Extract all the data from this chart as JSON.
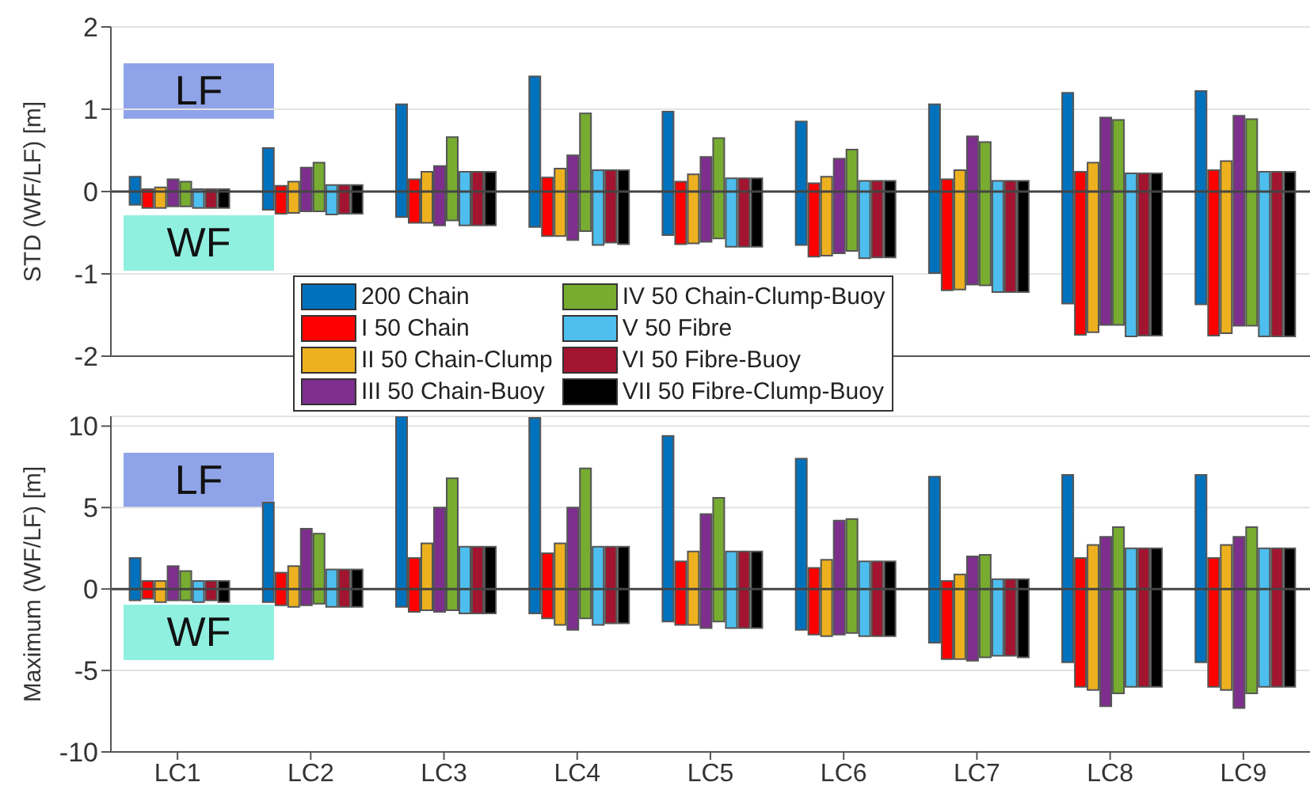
{
  "chart_data": [
    {
      "type": "bar",
      "ylabel": "STD (WF/LF) [m]",
      "categories": [
        null,
        null,
        null,
        null,
        null,
        null,
        null,
        null,
        null
      ],
      "ylim": [
        -2,
        2
      ],
      "yticks": [
        -2,
        -1,
        0,
        1,
        2
      ],
      "grid": "y",
      "legend": "bottom",
      "tick_labels": "y",
      "annotations": [
        "LF",
        "WF"
      ],
      "ref_lines": [
        {
          "axis": "y",
          "value": 0
        }
      ],
      "series": [
        {
          "name": "200 Chain",
          "color": "#0072bd",
          "base": [
            -0.16,
            -0.22,
            -0.31,
            -0.43,
            -0.53,
            -0.65,
            -0.99,
            -1.36,
            -1.37
          ],
          "values": [
            0.34,
            0.75,
            1.37,
            1.83,
            1.5,
            1.5,
            2.05,
            2.56,
            2.59
          ]
        },
        {
          "name": "I 50 Chain",
          "color": "#ff0000",
          "base": [
            -0.2,
            -0.27,
            -0.38,
            -0.54,
            -0.64,
            -0.79,
            -1.2,
            -1.74,
            -1.75
          ],
          "values": [
            0.23,
            0.34,
            0.53,
            0.71,
            0.76,
            0.89,
            1.35,
            1.98,
            2.01
          ]
        },
        {
          "name": "II 50 Chain-Clump",
          "color": "#edb120",
          "base": [
            -0.2,
            -0.26,
            -0.38,
            -0.54,
            -0.63,
            -0.78,
            -1.19,
            -1.71,
            -1.72
          ],
          "values": [
            0.25,
            0.38,
            0.62,
            0.82,
            0.84,
            0.96,
            1.45,
            2.06,
            2.09
          ]
        },
        {
          "name": "III 50 Chain-Buoy",
          "color": "#7e2f8e",
          "base": [
            -0.18,
            -0.24,
            -0.41,
            -0.59,
            -0.61,
            -0.75,
            -1.13,
            -1.62,
            -1.63
          ],
          "values": [
            0.33,
            0.53,
            0.72,
            1.03,
            1.03,
            1.15,
            1.8,
            2.52,
            2.55
          ]
        },
        {
          "name": "IV 50 Chain-Clump-Buoy",
          "color": "#77ac30",
          "base": [
            -0.18,
            -0.24,
            -0.35,
            -0.48,
            -0.57,
            -0.72,
            -1.14,
            -1.62,
            -1.63
          ],
          "values": [
            0.3,
            0.59,
            1.01,
            1.43,
            1.22,
            1.23,
            1.74,
            2.49,
            2.51
          ]
        },
        {
          "name": "V 50 Fibre",
          "color": "#4dbeee",
          "base": [
            -0.2,
            -0.28,
            -0.41,
            -0.65,
            -0.67,
            -0.81,
            -1.22,
            -1.76,
            -1.76
          ],
          "values": [
            0.23,
            0.36,
            0.65,
            0.91,
            0.83,
            0.94,
            1.35,
            1.98,
            2.0
          ]
        },
        {
          "name": "VI 50 Fibre-Buoy",
          "color": "#a2142f",
          "base": [
            -0.2,
            -0.27,
            -0.41,
            -0.62,
            -0.67,
            -0.8,
            -1.22,
            -1.75,
            -1.76
          ],
          "values": [
            0.23,
            0.35,
            0.65,
            0.88,
            0.83,
            0.93,
            1.35,
            1.97,
            2.0
          ]
        },
        {
          "name": "VII 50 Fibre-Clump-Buoy",
          "color": "#000000",
          "base": [
            -0.2,
            -0.27,
            -0.41,
            -0.64,
            -0.67,
            -0.8,
            -1.22,
            -1.75,
            -1.76
          ],
          "values": [
            0.23,
            0.35,
            0.65,
            0.9,
            0.83,
            0.93,
            1.35,
            1.97,
            2.0
          ]
        }
      ]
    },
    {
      "type": "bar",
      "ylabel": "Maximum (WF/LF) [m]",
      "categories": [
        "LC1",
        "LC2",
        "LC3",
        "LC4",
        "LC5",
        "LC6",
        "LC7",
        "LC8",
        "LC9"
      ],
      "ylim": [
        -10,
        10.6
      ],
      "yticks": [
        -10,
        -5,
        0,
        5,
        10
      ],
      "grid": "y",
      "annotations": [
        "LF",
        "WF"
      ],
      "ref_lines": [
        {
          "axis": "y",
          "value": 0
        }
      ],
      "series": [
        {
          "color": "#0072bd",
          "base": [
            -0.7,
            -0.8,
            -1.1,
            -1.5,
            -2,
            -2.5,
            -3.3,
            -4.5,
            -4.5
          ],
          "values": [
            2.6,
            6.1,
            11.7,
            12,
            11.4,
            10.5,
            10.2,
            11.5,
            11.5
          ]
        },
        {
          "color": "#ff0000",
          "base": [
            -0.6,
            -1,
            -1.4,
            -1.8,
            -2.2,
            -2.8,
            -4.3,
            -6,
            -6
          ],
          "values": [
            1.1,
            2,
            3.3,
            4,
            3.9,
            4.1,
            4.8,
            7.9,
            7.9
          ]
        },
        {
          "color": "#edb120",
          "base": [
            -0.8,
            -1.1,
            -1.3,
            -2.2,
            -2.2,
            -2.9,
            -4.3,
            -6.2,
            -6.2
          ],
          "values": [
            1.3,
            2.5,
            4.1,
            5,
            4.5,
            4.7,
            5.2,
            8.9,
            8.9
          ]
        },
        {
          "color": "#7e2f8e",
          "base": [
            -0.7,
            -1,
            -1.4,
            -2.5,
            -2.4,
            -2.8,
            -4.4,
            -7.2,
            -7.3
          ],
          "values": [
            2.1,
            4.7,
            6.4,
            7.5,
            7,
            7,
            6.4,
            10.4,
            10.5
          ]
        },
        {
          "color": "#77ac30",
          "base": [
            -0.7,
            -0.9,
            -1.3,
            -1.8,
            -2,
            -2.7,
            -4.2,
            -6.4,
            -6.4
          ],
          "values": [
            1.8,
            4.3,
            8.1,
            9.2,
            7.6,
            7,
            6.3,
            10.2,
            10.2
          ]
        },
        {
          "color": "#4dbeee",
          "base": [
            -0.8,
            -1.1,
            -1.5,
            -2.2,
            -2.4,
            -2.9,
            -4.1,
            -6,
            -6
          ],
          "values": [
            1.3,
            2.3,
            4.1,
            4.8,
            4.7,
            4.6,
            4.7,
            8.5,
            8.5
          ]
        },
        {
          "color": "#a2142f",
          "base": [
            -0.7,
            -1.1,
            -1.5,
            -2.1,
            -2.4,
            -2.9,
            -4.1,
            -6,
            -6
          ],
          "values": [
            1.2,
            2.3,
            4.1,
            4.7,
            4.7,
            4.6,
            4.7,
            8.5,
            8.5
          ]
        },
        {
          "color": "#000000",
          "base": [
            -0.8,
            -1.1,
            -1.5,
            -2.1,
            -2.4,
            -2.9,
            -4.2,
            -6,
            -6
          ],
          "values": [
            1.3,
            2.3,
            4.1,
            4.7,
            4.7,
            4.6,
            4.8,
            8.5,
            8.5
          ]
        }
      ]
    }
  ]
}
